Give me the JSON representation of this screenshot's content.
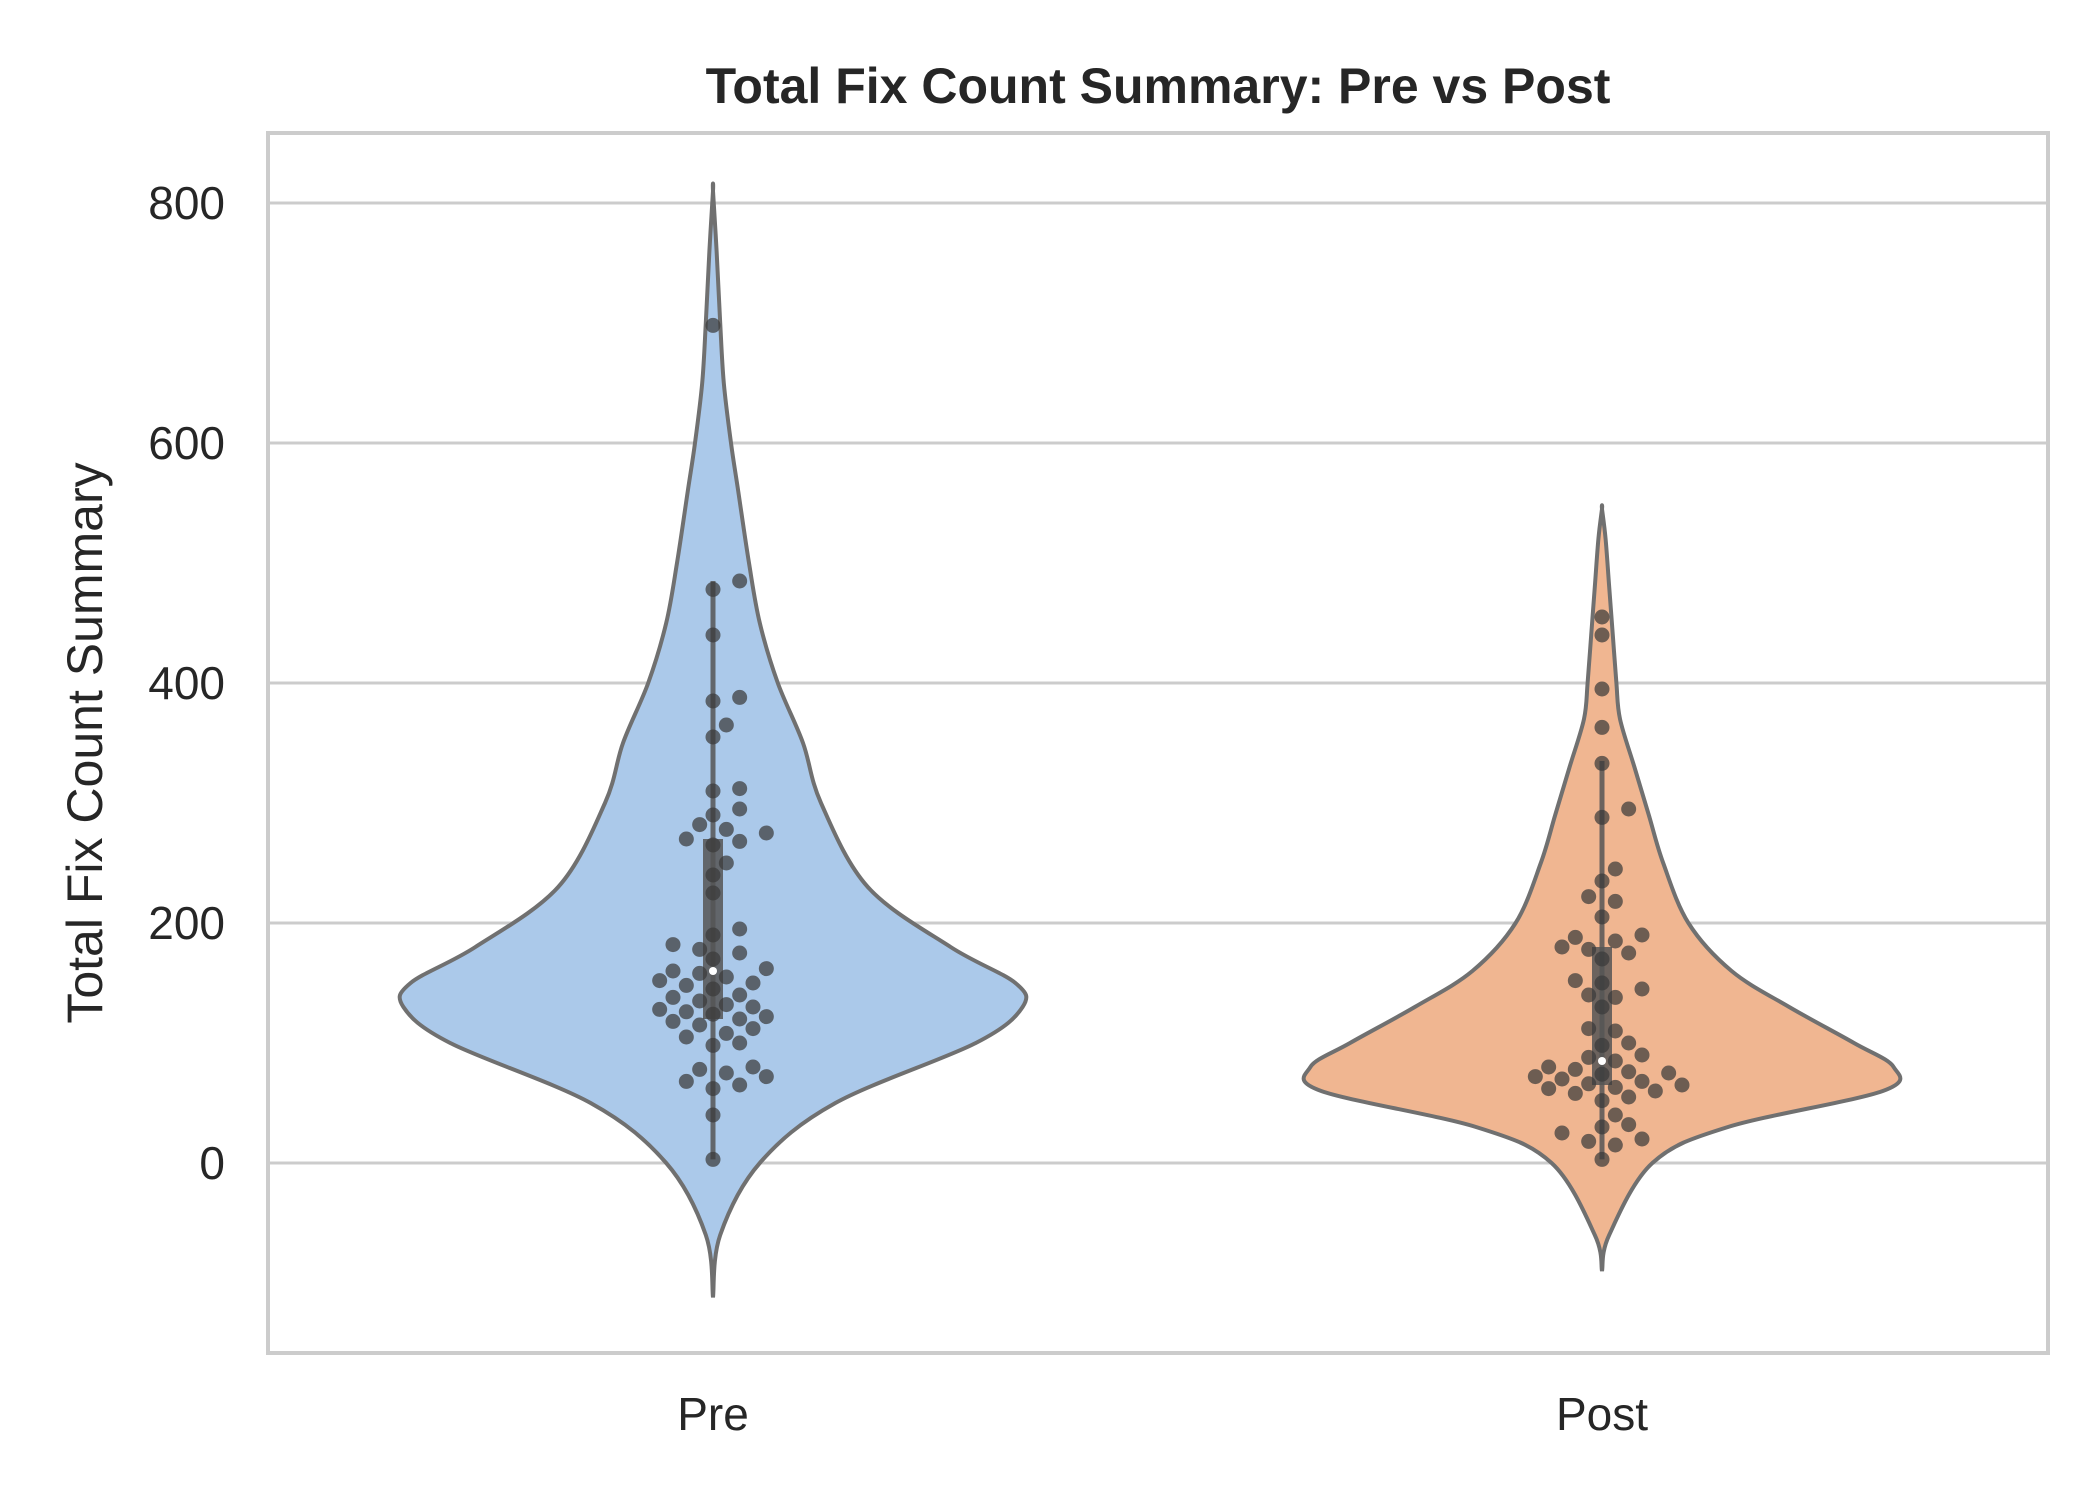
{
  "chart_data": {
    "type": "violin",
    "title": "Total Fix Count Summary: Pre vs Post",
    "xlabel": "",
    "ylabel": "Total Fix Count Summary",
    "categories": [
      "Pre",
      "Post"
    ],
    "ylim": [
      -160,
      860
    ],
    "yticks": [
      0,
      200,
      400,
      600,
      800
    ],
    "grid": true,
    "colors": {
      "Pre": "#abc9ea",
      "Post": "#f0b691",
      "outline": "#707070",
      "points": "#3a3a3a",
      "box": "#555555"
    },
    "series": [
      {
        "name": "Pre",
        "violin_range": [
          -112,
          810
        ],
        "box": {
          "q1": 120,
          "median": 160,
          "q3": 270,
          "whisker_low": 3,
          "whisker_high": 485
        },
        "density_profile": [
          [
            -112,
            0.0
          ],
          [
            -60,
            0.02
          ],
          [
            0,
            0.13
          ],
          [
            50,
            0.34
          ],
          [
            100,
            0.73
          ],
          [
            130,
            0.86
          ],
          [
            150,
            0.84
          ],
          [
            180,
            0.66
          ],
          [
            230,
            0.43
          ],
          [
            300,
            0.3
          ],
          [
            350,
            0.25
          ],
          [
            400,
            0.18
          ],
          [
            450,
            0.13
          ],
          [
            500,
            0.1
          ],
          [
            560,
            0.07
          ],
          [
            600,
            0.05
          ],
          [
            650,
            0.03
          ],
          [
            700,
            0.02
          ],
          [
            760,
            0.01
          ],
          [
            810,
            0.0
          ]
        ],
        "points": [
          3,
          40,
          62,
          65,
          68,
          72,
          75,
          78,
          80,
          98,
          100,
          105,
          108,
          112,
          115,
          118,
          120,
          122,
          124,
          126,
          128,
          130,
          132,
          135,
          138,
          140,
          145,
          148,
          150,
          152,
          155,
          158,
          160,
          162,
          170,
          175,
          178,
          182,
          190,
          195,
          225,
          240,
          250,
          265,
          268,
          270,
          275,
          278,
          282,
          290,
          295,
          310,
          312,
          355,
          365,
          385,
          388,
          440,
          478,
          485,
          698
        ]
      },
      {
        "name": "Post",
        "violin_range": [
          -90,
          545
        ],
        "box": {
          "q1": 65,
          "median": 85,
          "q3": 180,
          "whisker_low": 3,
          "whisker_high": 335
        },
        "density_profile": [
          [
            -90,
            0.0
          ],
          [
            -60,
            0.02
          ],
          [
            0,
            0.14
          ],
          [
            30,
            0.35
          ],
          [
            60,
            0.78
          ],
          [
            80,
            0.81
          ],
          [
            100,
            0.7
          ],
          [
            130,
            0.52
          ],
          [
            160,
            0.36
          ],
          [
            200,
            0.24
          ],
          [
            250,
            0.17
          ],
          [
            290,
            0.13
          ],
          [
            330,
            0.09
          ],
          [
            370,
            0.05
          ],
          [
            400,
            0.04
          ],
          [
            440,
            0.03
          ],
          [
            480,
            0.02
          ],
          [
            520,
            0.01
          ],
          [
            545,
            0.0
          ]
        ],
        "points": [
          3,
          15,
          18,
          20,
          25,
          30,
          32,
          40,
          52,
          55,
          58,
          60,
          62,
          63,
          65,
          66,
          68,
          70,
          72,
          74,
          75,
          76,
          78,
          80,
          85,
          88,
          90,
          98,
          100,
          110,
          112,
          130,
          138,
          140,
          145,
          150,
          152,
          170,
          175,
          178,
          180,
          185,
          188,
          190,
          205,
          218,
          222,
          235,
          245,
          288,
          295,
          333,
          363,
          395,
          440,
          455
        ]
      }
    ]
  }
}
